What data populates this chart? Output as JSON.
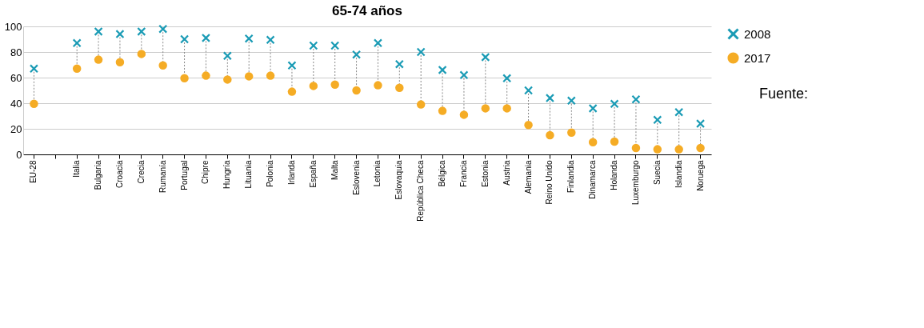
{
  "chart_data": {
    "type": "scatter",
    "title": "65-74 años",
    "categories": [
      "EU-28",
      null,
      "Italia",
      "Bulgaria",
      "Croacia",
      "Crecia",
      "Rumanía",
      "Portugal",
      "Chipre",
      "Hungría",
      "Lituania",
      "Polonia",
      "Irlanda",
      "España",
      "Malta",
      "Eslovenia",
      "Letonia",
      "Eslovaquia",
      "República Checa",
      "Bélgica",
      "Francia",
      "Estonia",
      "Austria",
      "Alemania",
      "Reino Unido",
      "Finlandia",
      "Dinamarca",
      "Holanda",
      "Luxemburgo",
      "Suecia",
      "Islandia",
      "Noruega"
    ],
    "series": [
      {
        "name": "2008",
        "color": "#1a9bb5",
        "marker": "cross",
        "values": [
          67,
          null,
          87,
          96,
          94,
          96,
          98,
          90,
          91,
          77,
          90.5,
          89.5,
          69.5,
          85,
          85,
          78,
          87,
          70.5,
          80,
          66,
          62,
          76,
          59.5,
          50,
          44,
          42,
          36,
          39.5,
          43,
          27,
          33,
          24
        ]
      },
      {
        "name": "2017",
        "color": "#f5ac25",
        "marker": "circle",
        "values": [
          39.5,
          null,
          67,
          74,
          72,
          78.5,
          69.5,
          59.5,
          61.5,
          58.5,
          61,
          61.5,
          49,
          53.5,
          54.5,
          50,
          54,
          52,
          39,
          34,
          31,
          36,
          36,
          23,
          15,
          17,
          9.5,
          10,
          5,
          4,
          4,
          5
        ]
      }
    ],
    "ylim": [
      0,
      100
    ],
    "yticks": [
      0,
      20,
      40,
      60,
      80,
      100
    ],
    "grid": "y",
    "legend": "top right",
    "annotations": [
      "Fuente:"
    ]
  }
}
